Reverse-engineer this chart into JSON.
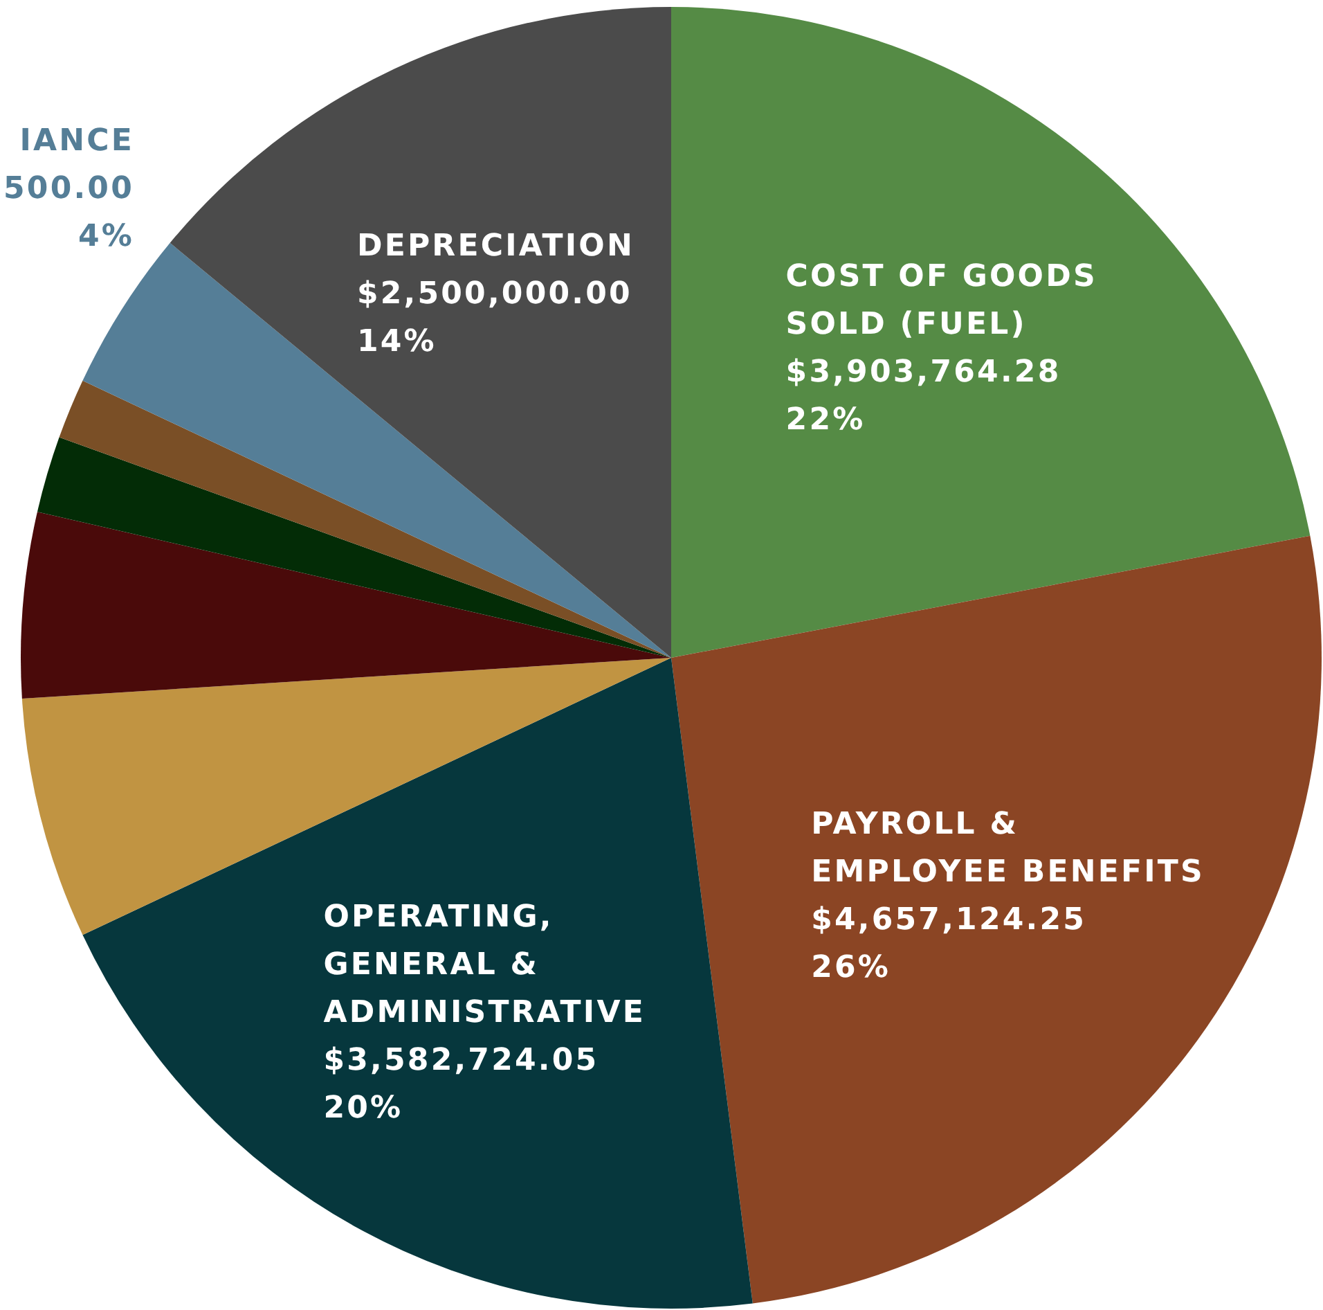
{
  "chart_data": {
    "type": "pie",
    "categories": [
      "COST OF GOODS\nSOLD (FUEL)",
      "PAYROLL &\nEMPLOYEE BENEFITS",
      "OPERATING,\nGENERAL &\nADMINISTRATIVE",
      null,
      null,
      null,
      null,
      "IANCE",
      "DEPRECIATION"
    ],
    "values": [
      22,
      26,
      20,
      6,
      4.6,
      1.9,
      1.5,
      4,
      14
    ],
    "colors": [
      "#558b45",
      "#8b4524",
      "#06373d",
      "#c19442",
      "#4a0a0a",
      "#032c06",
      "#7a4f26",
      "#557e97",
      "#4b4b4b"
    ],
    "value_labels": [
      "$3,903,764.28\n22%",
      "$4,657,124.25\n26%",
      "$3,582,724.05\n20%",
      null,
      null,
      null,
      null,
      "500.00\n4%",
      "$2,500,000.00\n14%"
    ]
  }
}
